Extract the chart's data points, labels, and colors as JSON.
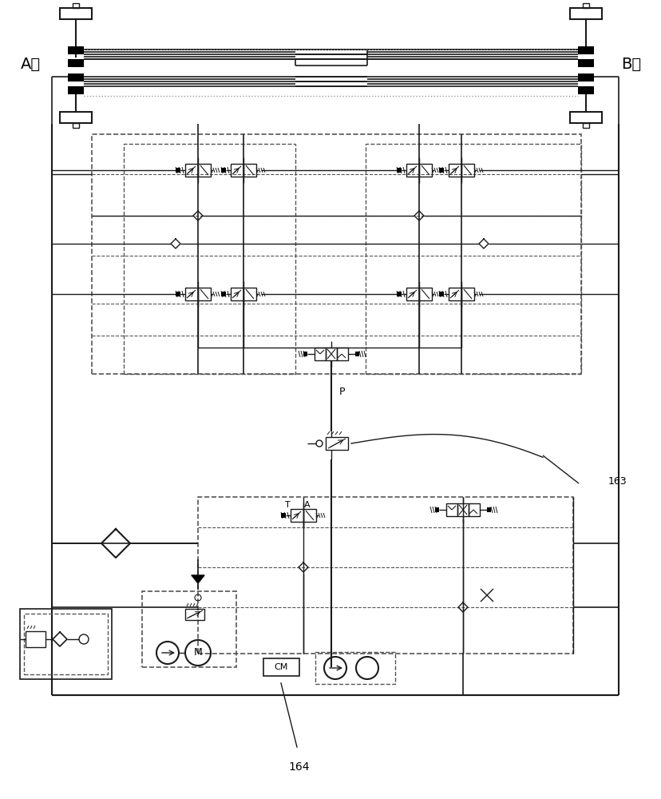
{
  "bg_color": "#ffffff",
  "line_color": "#1a1a1a",
  "dashed_color": "#555555",
  "label_163": "163",
  "label_164": "164",
  "label_A": "A头",
  "label_B": "B头",
  "label_P": "P",
  "label_CM": "CM",
  "label_T": "T",
  "label_A2": "A",
  "label_M": "M",
  "figsize": [
    8.29,
    10.0
  ],
  "dpi": 100
}
